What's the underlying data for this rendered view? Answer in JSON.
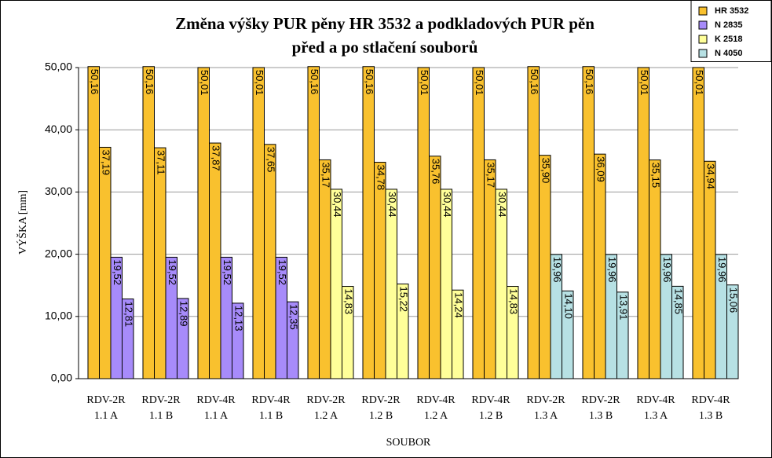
{
  "chart_data": {
    "type": "grouped-pair-bar",
    "title": [
      "Změna výšky PUR pěny HR 3532 a podkladových PUR pěn",
      "před a po stlačení souborů"
    ],
    "y_label": "VÝŠKA [mm]",
    "x_label": "SOUBOR",
    "categories": [
      [
        "RDV-2R",
        "1.1 A"
      ],
      [
        "RDV-2R",
        "1.1 B"
      ],
      [
        "RDV-4R",
        "1.1 A"
      ],
      [
        "RDV-4R",
        "1.1 B"
      ],
      [
        "RDV-2R",
        "1.2 A"
      ],
      [
        "RDV-2R",
        "1.2 B"
      ],
      [
        "RDV-4R",
        "1.2 A"
      ],
      [
        "RDV-4R",
        "1.2 B"
      ],
      [
        "RDV-2R",
        "1.3 A"
      ],
      [
        "RDV-2R",
        "1.3 B"
      ],
      [
        "RDV-4R",
        "1.3 A"
      ],
      [
        "RDV-4R",
        "1.3 B"
      ]
    ],
    "series": [
      {
        "name": "HR 3532",
        "color": "#f9c12e",
        "slot": 0,
        "values": [
          [
            50.16,
            37.19
          ],
          [
            50.16,
            37.11
          ],
          [
            50.01,
            37.87
          ],
          [
            50.01,
            37.65
          ],
          [
            50.16,
            35.17
          ],
          [
            50.16,
            34.78
          ],
          [
            50.01,
            35.76
          ],
          [
            50.01,
            35.17
          ],
          [
            50.16,
            35.9
          ],
          [
            50.16,
            36.09
          ],
          [
            50.01,
            35.15
          ],
          [
            50.01,
            34.94
          ]
        ],
        "value_labels": [
          [
            "50,16",
            "37,19"
          ],
          [
            "50,16",
            "37,11"
          ],
          [
            "50,01",
            "37,87"
          ],
          [
            "50,01",
            "37,65"
          ],
          [
            "50,16",
            "35,17"
          ],
          [
            "50,16",
            "34,78"
          ],
          [
            "50,01",
            "35,76"
          ],
          [
            "50,01",
            "35,17"
          ],
          [
            "50,16",
            "35,90"
          ],
          [
            "50,16",
            "36,09"
          ],
          [
            "50,01",
            "35,15"
          ],
          [
            "50,01",
            "34,94"
          ]
        ]
      },
      {
        "name": "N 2835",
        "color": "#a78bfa",
        "slot": 1,
        "values": [
          [
            19.52,
            12.81
          ],
          [
            19.52,
            12.89
          ],
          [
            19.52,
            12.13
          ],
          [
            19.52,
            12.35
          ],
          null,
          null,
          null,
          null,
          null,
          null,
          null,
          null
        ],
        "value_labels": [
          [
            "19,52",
            "12,81"
          ],
          [
            "19,52",
            "12,89"
          ],
          [
            "19,52",
            "12,13"
          ],
          [
            "19,52",
            "12,35"
          ],
          null,
          null,
          null,
          null,
          null,
          null,
          null,
          null
        ]
      },
      {
        "name": "K 2518",
        "color": "#ffff99",
        "slot": 1,
        "values": [
          null,
          null,
          null,
          null,
          [
            30.44,
            14.83
          ],
          [
            30.44,
            15.22
          ],
          [
            30.44,
            14.24
          ],
          [
            30.44,
            14.83
          ],
          null,
          null,
          null,
          null
        ],
        "value_labels": [
          null,
          null,
          null,
          null,
          [
            "30,44",
            "14,83"
          ],
          [
            "30,44",
            "15,22"
          ],
          [
            "30,44",
            "14,24"
          ],
          [
            "30,44",
            "14,83"
          ],
          null,
          null,
          null,
          null
        ]
      },
      {
        "name": "N 4050",
        "color": "#b7e1e4",
        "slot": 1,
        "values": [
          null,
          null,
          null,
          null,
          null,
          null,
          null,
          null,
          [
            19.96,
            14.1
          ],
          [
            19.96,
            13.91
          ],
          [
            19.96,
            14.85
          ],
          [
            19.96,
            15.06
          ]
        ],
        "value_labels": [
          null,
          null,
          null,
          null,
          null,
          null,
          null,
          null,
          [
            "19,96",
            "14,10"
          ],
          [
            "19,96",
            "13,91"
          ],
          [
            "19,96",
            "14,85"
          ],
          [
            "19,96",
            "15,06"
          ]
        ]
      }
    ],
    "ylim": [
      0,
      50
    ],
    "yticks": [
      {
        "value": 0,
        "label": "0,00"
      },
      {
        "value": 10,
        "label": "10,00"
      },
      {
        "value": 20,
        "label": "20,00"
      },
      {
        "value": 30,
        "label": "30,00"
      },
      {
        "value": 40,
        "label": "40,00"
      },
      {
        "value": 50,
        "label": "50,00"
      }
    ],
    "grid": true,
    "legend": "top-right"
  }
}
